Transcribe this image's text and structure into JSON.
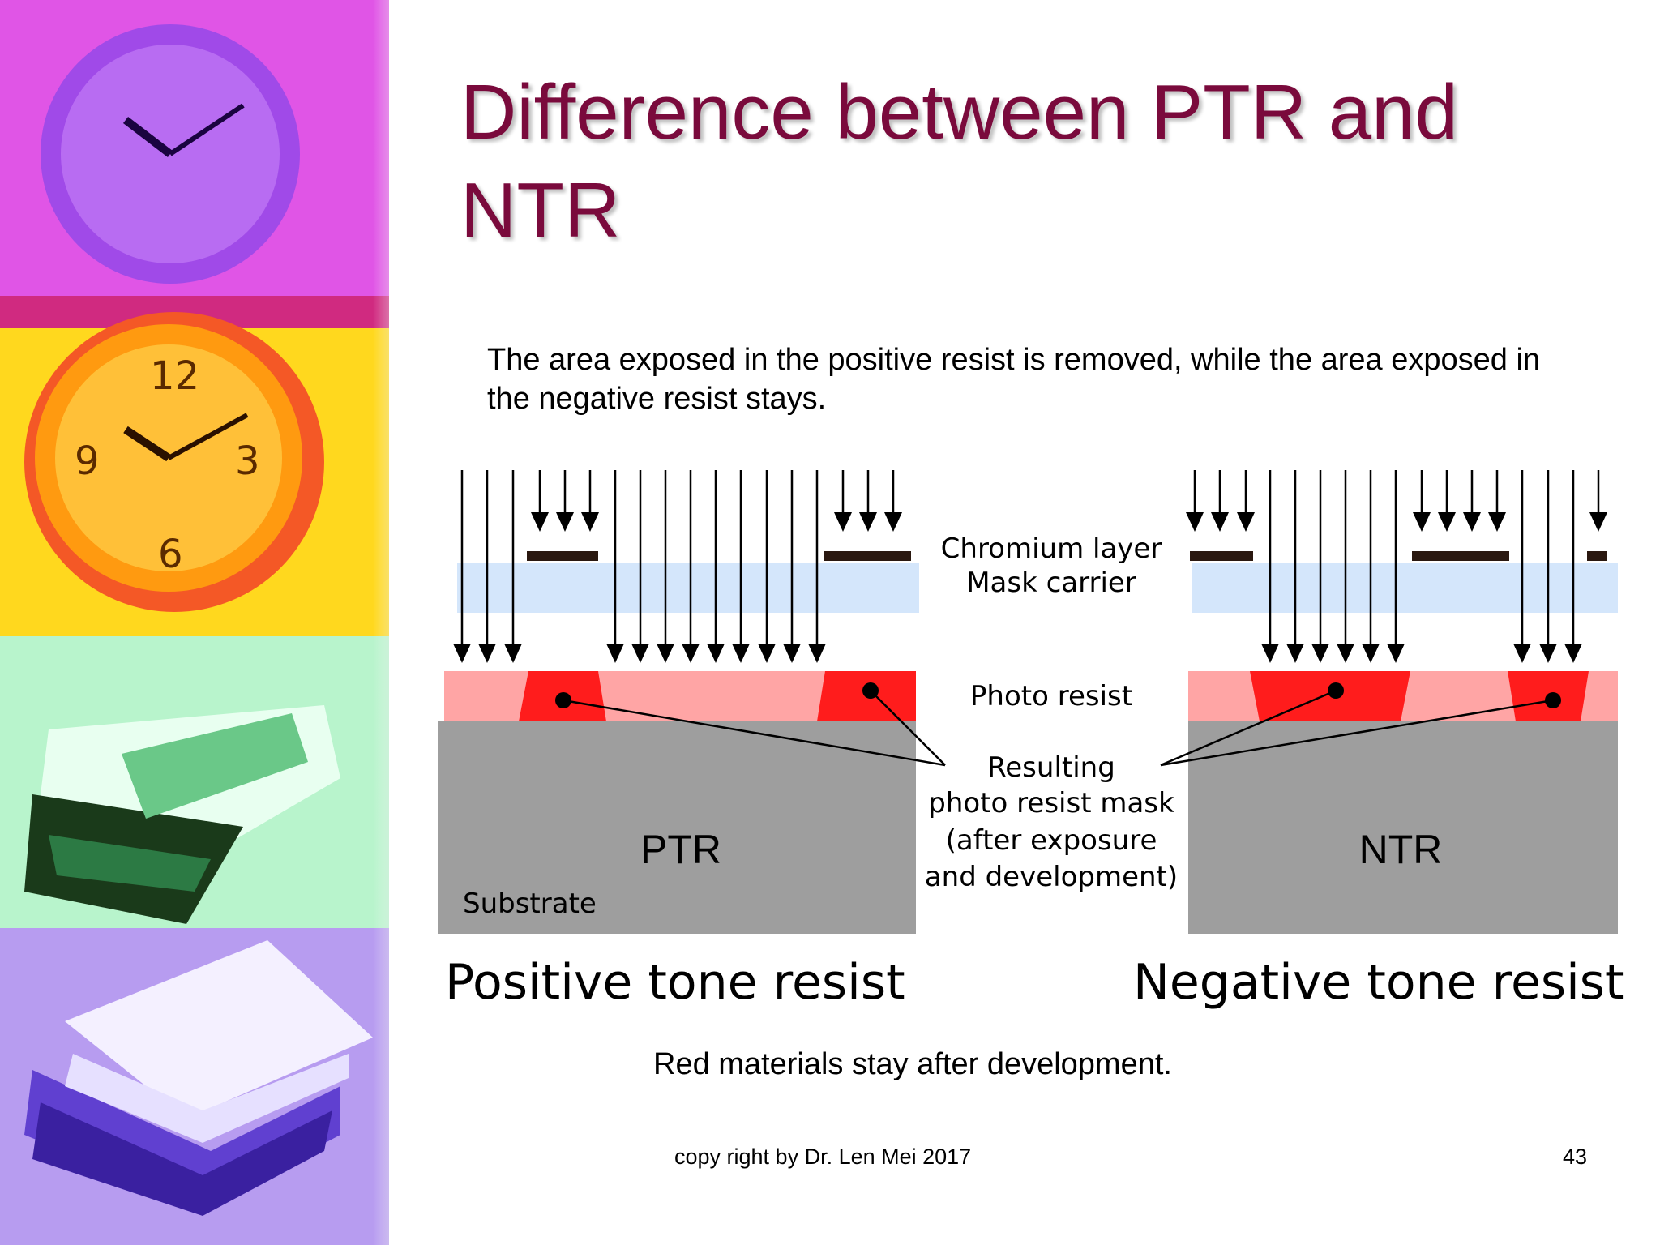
{
  "slide": {
    "title": "Difference between PTR and NTR",
    "body": "The area exposed in the positive resist is removed, while the area exposed in the negative resist stays.",
    "note": "Red materials stay after development.",
    "footer": "copy right by Dr. Len Mei 2017",
    "page_number": "43"
  },
  "diagram": {
    "labels": {
      "chromium_layer": "Chromium layer",
      "mask_carrier": "Mask carrier",
      "photo_resist": "Photo resist",
      "resulting_line1": "Resulting",
      "resulting_line2": "photo resist mask",
      "resulting_line3": "(after exposure",
      "resulting_line4": "and development)",
      "substrate": "Substrate",
      "ptr": "PTR",
      "ntr": "NTR",
      "positive_caption": "Positive tone resist",
      "negative_caption": "Negative tone resist"
    },
    "colors": {
      "title": "#7a0a3c",
      "mask_carrier": "#d4e6fb",
      "chromium": "#2a1810",
      "resist_light": "#ffa5a5",
      "resist_dark": "#ff1c1c",
      "substrate": "#9e9e9e"
    }
  }
}
